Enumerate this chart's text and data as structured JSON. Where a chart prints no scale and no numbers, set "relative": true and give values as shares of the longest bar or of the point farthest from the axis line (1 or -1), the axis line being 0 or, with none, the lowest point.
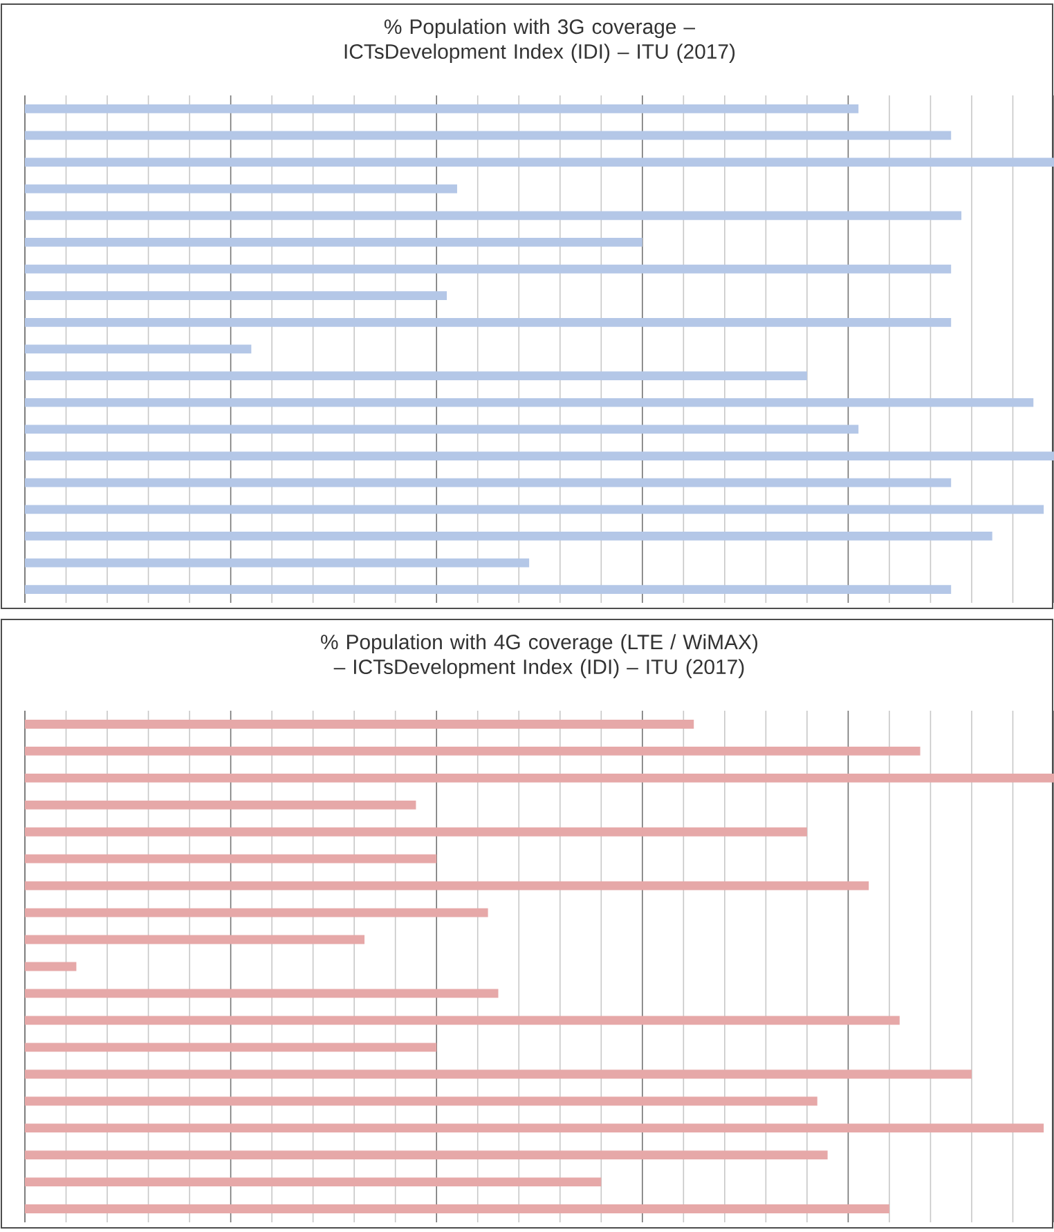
{
  "chart_data": [
    {
      "type": "bar",
      "orientation": "horizontal",
      "relative": true,
      "grid": "x",
      "title": "% Population with 3G coverage – ICTsDevelopment Index (IDI) – ITU (2017)",
      "categories": [
        null,
        null,
        null,
        null,
        null,
        null,
        null,
        null,
        null,
        null,
        null,
        null,
        null,
        null,
        null,
        null,
        null,
        null,
        null
      ],
      "color": "#b4c7e7",
      "values": [
        0.81,
        0.9,
        1,
        0.42,
        0.91,
        0.6,
        0.9,
        0.41,
        0.9,
        0.22,
        0.76,
        0.98,
        0.81,
        1,
        0.9,
        0.99,
        0.94,
        0.49,
        0.9
      ]
    },
    {
      "type": "bar",
      "orientation": "horizontal",
      "relative": true,
      "grid": "x",
      "title": "% Population with 4G coverage (LTE / WiMAX) – ICTsDevelopment Index (IDI) – ITU (2017)",
      "categories": [
        null,
        null,
        null,
        null,
        null,
        null,
        null,
        null,
        null,
        null,
        null,
        null,
        null,
        null,
        null,
        null,
        null,
        null,
        null
      ],
      "color": "#e6a8a8",
      "values": [
        0.65,
        0.87,
        1,
        0.38,
        0.76,
        0.4,
        0.82,
        0.45,
        0.33,
        0.05,
        0.46,
        0.85,
        0.4,
        0.92,
        0.77,
        0.99,
        0.78,
        0.56,
        0.84
      ]
    }
  ]
}
